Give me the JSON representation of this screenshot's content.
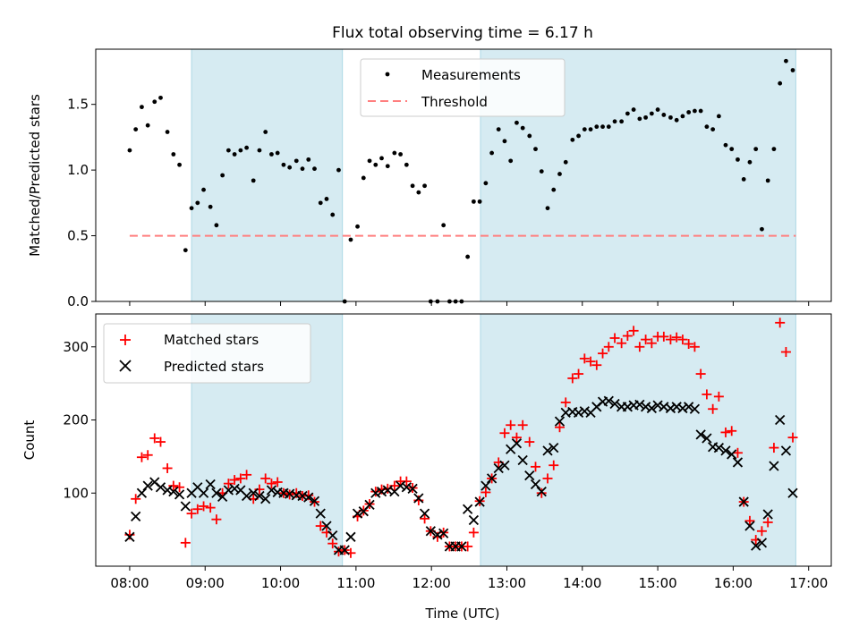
{
  "title": "Flux total observing time = 6.17 h",
  "colors": {
    "shade": "#add8e6",
    "measurement": "#000000",
    "threshold": "#ff7f7f",
    "matched": "#ff0000",
    "predicted": "#000000"
  },
  "chart_data": [
    {
      "type": "scatter",
      "ylabel": "Matched/Predicted stars",
      "xlabel": "",
      "xlim": [
        7.55,
        17.3
      ],
      "ylim": [
        0,
        1.92
      ],
      "yticks": [
        0.0,
        0.5,
        1.0,
        1.5
      ],
      "ytick_labels": [
        "0.0",
        "0.5",
        "1.0",
        "1.5"
      ],
      "shaded_regions": [
        [
          8.82,
          10.82
        ],
        [
          12.65,
          16.83
        ]
      ],
      "legend": {
        "location": "upper center",
        "entries": [
          "Measurements",
          "Threshold"
        ]
      },
      "threshold": {
        "name": "Threshold",
        "y": 0.5,
        "x_range": [
          8.0,
          16.83
        ]
      },
      "series": [
        {
          "name": "Measurements",
          "x": [
            8.0,
            8.08,
            8.16,
            8.24,
            8.33,
            8.41,
            8.5,
            8.58,
            8.66,
            8.74,
            8.82,
            8.9,
            8.98,
            9.07,
            9.15,
            9.23,
            9.31,
            9.39,
            9.47,
            9.55,
            9.64,
            9.72,
            9.8,
            9.88,
            9.96,
            10.04,
            10.12,
            10.21,
            10.29,
            10.37,
            10.45,
            10.53,
            10.61,
            10.69,
            10.77,
            10.85,
            10.93,
            11.02,
            11.1,
            11.18,
            11.26,
            11.34,
            11.42,
            11.51,
            11.59,
            11.67,
            11.75,
            11.83,
            11.91,
            11.99,
            12.08,
            12.16,
            12.24,
            12.32,
            12.4,
            12.48,
            12.56,
            12.64,
            12.72,
            12.8,
            12.89,
            12.97,
            13.05,
            13.13,
            13.21,
            13.3,
            13.38,
            13.46,
            13.54,
            13.62,
            13.7,
            13.78,
            13.87,
            13.95,
            14.03,
            14.11,
            14.19,
            14.27,
            14.35,
            14.43,
            14.52,
            14.6,
            14.68,
            14.76,
            14.84,
            14.92,
            15.0,
            15.08,
            15.17,
            15.25,
            15.33,
            15.41,
            15.49,
            15.57,
            15.65,
            15.73,
            15.81,
            15.9,
            15.98,
            16.06,
            16.14,
            16.22,
            16.3,
            16.38,
            16.46,
            16.54,
            16.62,
            16.7,
            16.79
          ],
          "y": [
            1.15,
            1.31,
            1.48,
            1.34,
            1.52,
            1.55,
            1.29,
            1.12,
            1.04,
            0.39,
            0.71,
            0.75,
            0.85,
            0.72,
            0.58,
            0.96,
            1.15,
            1.12,
            1.15,
            1.17,
            0.92,
            1.15,
            1.29,
            1.12,
            1.13,
            1.04,
            1.02,
            1.07,
            1.01,
            1.08,
            1.01,
            0.75,
            0.78,
            0.66,
            1.0,
            0.0,
            0.47,
            0.57,
            0.94,
            1.07,
            1.04,
            1.09,
            1.03,
            1.13,
            1.12,
            1.04,
            0.88,
            0.83,
            0.88,
            0.0,
            0.0,
            0.58,
            0.0,
            0.0,
            0.0,
            0.34,
            0.76,
            0.76,
            0.9,
            1.13,
            1.31,
            1.22,
            1.07,
            1.36,
            1.32,
            1.26,
            1.16,
            0.99,
            0.71,
            0.85,
            0.97,
            1.06,
            1.23,
            1.26,
            1.31,
            1.31,
            1.33,
            1.33,
            1.33,
            1.37,
            1.37,
            1.43,
            1.46,
            1.39,
            1.4,
            1.43,
            1.46,
            1.42,
            1.4,
            1.38,
            1.41,
            1.44,
            1.45,
            1.45,
            1.33,
            1.31,
            1.41,
            1.19,
            1.16,
            1.08,
            0.93,
            1.06,
            1.16,
            0.55,
            0.92,
            1.16,
            1.66,
            1.83,
            1.76
          ]
        }
      ]
    },
    {
      "type": "scatter",
      "ylabel": "Count",
      "xlabel": "Time (UTC)",
      "xlim": [
        7.55,
        17.3
      ],
      "ylim": [
        0,
        345
      ],
      "xticks": [
        8,
        9,
        10,
        11,
        12,
        13,
        14,
        15,
        16,
        17
      ],
      "xtick_labels": [
        "08:00",
        "09:00",
        "10:00",
        "11:00",
        "12:00",
        "13:00",
        "14:00",
        "15:00",
        "16:00",
        "17:00"
      ],
      "yticks": [
        100,
        200,
        300
      ],
      "ytick_labels": [
        "100",
        "200",
        "300"
      ],
      "shaded_regions": [
        [
          8.82,
          10.82
        ],
        [
          12.65,
          16.83
        ]
      ],
      "legend": {
        "location": "upper left",
        "entries": [
          "Matched stars",
          "Predicted stars"
        ]
      },
      "series": [
        {
          "name": "Matched stars",
          "marker": "+",
          "x": [
            8.0,
            8.08,
            8.16,
            8.24,
            8.33,
            8.41,
            8.5,
            8.58,
            8.66,
            8.74,
            8.82,
            8.9,
            8.98,
            9.07,
            9.15,
            9.23,
            9.31,
            9.39,
            9.47,
            9.55,
            9.64,
            9.72,
            9.8,
            9.88,
            9.96,
            10.04,
            10.12,
            10.21,
            10.29,
            10.37,
            10.45,
            10.53,
            10.61,
            10.69,
            10.77,
            10.85,
            10.93,
            11.02,
            11.1,
            11.18,
            11.26,
            11.34,
            11.42,
            11.51,
            11.59,
            11.67,
            11.75,
            11.83,
            11.91,
            11.99,
            12.08,
            12.16,
            12.24,
            12.32,
            12.4,
            12.48,
            12.56,
            12.64,
            12.72,
            12.8,
            12.89,
            12.97,
            13.05,
            13.13,
            13.21,
            13.3,
            13.38,
            13.46,
            13.54,
            13.62,
            13.7,
            13.78,
            13.87,
            13.95,
            14.03,
            14.11,
            14.19,
            14.27,
            14.35,
            14.43,
            14.52,
            14.6,
            14.68,
            14.76,
            14.84,
            14.92,
            15.0,
            15.08,
            15.17,
            15.25,
            15.33,
            15.41,
            15.49,
            15.57,
            15.65,
            15.73,
            15.81,
            15.9,
            15.98,
            16.06,
            16.14,
            16.22,
            16.3,
            16.38,
            16.46,
            16.54,
            16.62,
            16.7,
            16.79
          ],
          "y": [
            43,
            92,
            149,
            152,
            175,
            170,
            134,
            110,
            108,
            32,
            72,
            78,
            82,
            80,
            64,
            100,
            113,
            118,
            120,
            125,
            92,
            105,
            120,
            113,
            115,
            100,
            98,
            100,
            96,
            97,
            88,
            55,
            46,
            31,
            20,
            22,
            18,
            68,
            76,
            85,
            102,
            105,
            106,
            110,
            116,
            116,
            107,
            90,
            65,
            48,
            40,
            46,
            27,
            27,
            27,
            27,
            46,
            89,
            101,
            120,
            142,
            182,
            193,
            176,
            193,
            170,
            136,
            100,
            120,
            138,
            190,
            224,
            257,
            263,
            284,
            280,
            275,
            291,
            300,
            312,
            305,
            315,
            322,
            300,
            310,
            305,
            314,
            314,
            310,
            313,
            310,
            304,
            300,
            263,
            235,
            215,
            232,
            183,
            185,
            155,
            88,
            62,
            36,
            48,
            60,
            162,
            333,
            293,
            176
          ]
        },
        {
          "name": "Predicted stars",
          "marker": "x",
          "x": [
            8.0,
            8.08,
            8.16,
            8.24,
            8.33,
            8.41,
            8.5,
            8.58,
            8.66,
            8.74,
            8.82,
            8.9,
            8.98,
            9.07,
            9.15,
            9.23,
            9.31,
            9.39,
            9.47,
            9.55,
            9.64,
            9.72,
            9.8,
            9.88,
            9.96,
            10.04,
            10.12,
            10.21,
            10.29,
            10.37,
            10.45,
            10.53,
            10.61,
            10.69,
            10.77,
            10.85,
            10.93,
            11.02,
            11.1,
            11.18,
            11.26,
            11.34,
            11.42,
            11.51,
            11.59,
            11.67,
            11.75,
            11.83,
            11.91,
            11.99,
            12.08,
            12.16,
            12.24,
            12.32,
            12.4,
            12.48,
            12.56,
            12.64,
            12.72,
            12.8,
            12.89,
            12.97,
            13.05,
            13.13,
            13.21,
            13.3,
            13.38,
            13.46,
            13.54,
            13.62,
            13.7,
            13.78,
            13.87,
            13.95,
            14.03,
            14.11,
            14.19,
            14.27,
            14.35,
            14.43,
            14.52,
            14.6,
            14.68,
            14.76,
            14.84,
            14.92,
            15.0,
            15.08,
            15.17,
            15.25,
            15.33,
            15.41,
            15.49,
            15.57,
            15.65,
            15.73,
            15.81,
            15.9,
            15.98,
            16.06,
            16.14,
            16.22,
            16.3,
            16.38,
            16.46,
            16.54,
            16.62,
            16.7,
            16.79
          ],
          "y": [
            40,
            68,
            100,
            110,
            115,
            108,
            104,
            102,
            98,
            82,
            100,
            108,
            100,
            112,
            100,
            95,
            104,
            106,
            104,
            96,
            100,
            96,
            92,
            104,
            101,
            100,
            99,
            97,
            96,
            94,
            89,
            72,
            55,
            42,
            22,
            22,
            40,
            72,
            75,
            84,
            100,
            102,
            104,
            102,
            110,
            108,
            106,
            93,
            72,
            48,
            43,
            45,
            27,
            27,
            27,
            78,
            63,
            88,
            110,
            120,
            134,
            138,
            160,
            168,
            145,
            124,
            112,
            102,
            158,
            162,
            198,
            210,
            211,
            210,
            212,
            210,
            218,
            225,
            226,
            222,
            218,
            218,
            220,
            221,
            218,
            216,
            220,
            218,
            216,
            218,
            216,
            218,
            215,
            180,
            175,
            163,
            162,
            158,
            153,
            142,
            88,
            55,
            28,
            32,
            71,
            137,
            200,
            158,
            100
          ]
        }
      ]
    }
  ]
}
